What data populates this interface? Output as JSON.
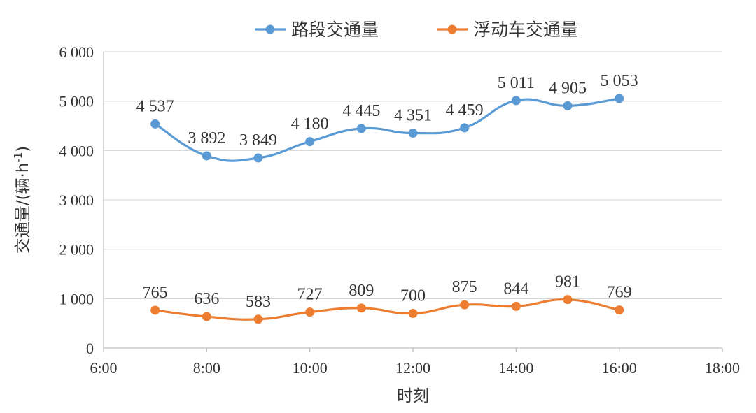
{
  "chart_data": {
    "type": "line",
    "xlabel": "时刻",
    "ylabel": "交通量/(辆·h",
    "ylabel_sup": "-1",
    "ylabel_close": ")",
    "xlim": [
      6,
      18
    ],
    "ylim": [
      0,
      6000
    ],
    "x_ticks": [
      6,
      8,
      10,
      12,
      14,
      16,
      18
    ],
    "x_tick_labels": [
      "6:00",
      "8:00",
      "10:00",
      "12:00",
      "14:00",
      "16:00",
      "18:00"
    ],
    "y_ticks": [
      0,
      1000,
      2000,
      3000,
      4000,
      5000,
      6000
    ],
    "y_tick_labels": [
      "0",
      "1 000",
      "2 000",
      "3 000",
      "4 000",
      "5 000",
      "6 000"
    ],
    "grid": "horizontal",
    "legend_position": "top-center",
    "x": [
      7,
      8,
      9,
      10,
      11,
      12,
      13,
      14,
      15,
      16
    ],
    "series": [
      {
        "name": "路段交通量",
        "color": "#5b9bd5",
        "values": [
          4537,
          3892,
          3849,
          4180,
          4445,
          4351,
          4459,
          5011,
          4905,
          5053
        ],
        "labels": [
          "4 537",
          "3 892",
          "3 849",
          "4 180",
          "4 445",
          "4 351",
          "4 459",
          "5 011",
          "4 905",
          "5 053"
        ]
      },
      {
        "name": "浮动车交通量",
        "color": "#ed7d31",
        "values": [
          765,
          636,
          583,
          727,
          809,
          700,
          875,
          844,
          981,
          769
        ],
        "labels": [
          "765",
          "636",
          "583",
          "727",
          "809",
          "700",
          "875",
          "844",
          "981",
          "769"
        ]
      }
    ]
  }
}
